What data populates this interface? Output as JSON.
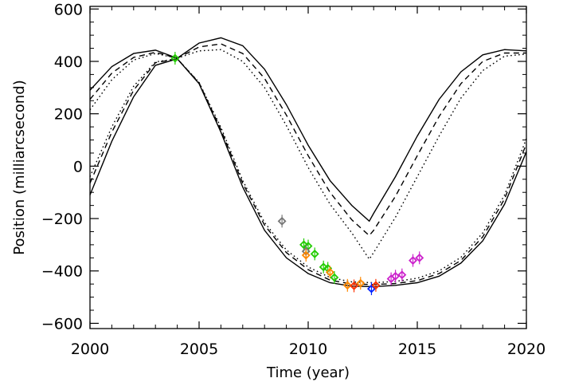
{
  "chart_data": {
    "type": "scatter",
    "title": "",
    "xlabel": "Time (year)",
    "ylabel": "Position (milliarcsecond)",
    "xlim": [
      2000,
      2020
    ],
    "ylim": [
      -620,
      610
    ],
    "x_ticks": [
      2000,
      2005,
      2010,
      2015,
      2020
    ],
    "x_tick_labels": [
      "2000",
      "2005",
      "2010",
      "2015",
      "2020"
    ],
    "y_ticks": [
      -600,
      -400,
      -200,
      0,
      200,
      400,
      600
    ],
    "y_tick_labels": [
      "−600",
      "−400",
      "−200",
      "0",
      "200",
      "400",
      "600"
    ],
    "grid": false,
    "legend": "none",
    "series": [
      {
        "style": "solid",
        "color": "#000000",
        "points": [
          [
            2000,
            -110
          ],
          [
            2001,
            95
          ],
          [
            2002,
            265
          ],
          [
            2003,
            385
          ],
          [
            2004,
            410
          ],
          [
            2005,
            315
          ],
          [
            2006,
            130
          ],
          [
            2007,
            -80
          ],
          [
            2008,
            -245
          ],
          [
            2009,
            -350
          ],
          [
            2010,
            -410
          ],
          [
            2011,
            -445
          ],
          [
            2012,
            -458
          ],
          [
            2013,
            -460
          ],
          [
            2014,
            -455
          ],
          [
            2015,
            -445
          ],
          [
            2016,
            -420
          ],
          [
            2017,
            -370
          ],
          [
            2018,
            -285
          ],
          [
            2019,
            -145
          ],
          [
            2020,
            55
          ]
        ]
      },
      {
        "style": "dashed",
        "color": "#000000",
        "points": [
          [
            2000,
            -65
          ],
          [
            2001,
            130
          ],
          [
            2002,
            290
          ],
          [
            2003,
            395
          ],
          [
            2004,
            410
          ],
          [
            2005,
            318
          ],
          [
            2006,
            140
          ],
          [
            2007,
            -65
          ],
          [
            2008,
            -225
          ],
          [
            2009,
            -330
          ],
          [
            2010,
            -395
          ],
          [
            2011,
            -435
          ],
          [
            2012,
            -450
          ],
          [
            2013,
            -452
          ],
          [
            2014,
            -448
          ],
          [
            2015,
            -437
          ],
          [
            2016,
            -410
          ],
          [
            2017,
            -360
          ],
          [
            2018,
            -270
          ],
          [
            2019,
            -125
          ],
          [
            2020,
            85
          ]
        ]
      },
      {
        "style": "dotted",
        "color": "#000000",
        "points": [
          [
            2000,
            -40
          ],
          [
            2001,
            150
          ],
          [
            2002,
            305
          ],
          [
            2003,
            398
          ],
          [
            2004,
            410
          ],
          [
            2005,
            320
          ],
          [
            2006,
            148
          ],
          [
            2007,
            -55
          ],
          [
            2008,
            -215
          ],
          [
            2009,
            -320
          ],
          [
            2010,
            -385
          ],
          [
            2011,
            -425
          ],
          [
            2012,
            -442
          ],
          [
            2013,
            -445
          ],
          [
            2014,
            -440
          ],
          [
            2015,
            -428
          ],
          [
            2016,
            -400
          ],
          [
            2017,
            -348
          ],
          [
            2018,
            -255
          ],
          [
            2019,
            -110
          ],
          [
            2020,
            105
          ]
        ]
      },
      {
        "style": "solid",
        "color": "#000000",
        "points": [
          [
            2000,
            290
          ],
          [
            2001,
            380
          ],
          [
            2002,
            430
          ],
          [
            2003,
            443
          ],
          [
            2004,
            412
          ],
          [
            2005,
            470
          ],
          [
            2006,
            490
          ],
          [
            2007,
            460
          ],
          [
            2008,
            370
          ],
          [
            2009,
            235
          ],
          [
            2010,
            80
          ],
          [
            2011,
            -55
          ],
          [
            2012,
            -150
          ],
          [
            2012.8,
            -210
          ],
          [
            2013,
            -180
          ],
          [
            2014,
            -40
          ],
          [
            2015,
            115
          ],
          [
            2016,
            255
          ],
          [
            2017,
            360
          ],
          [
            2018,
            425
          ],
          [
            2019,
            445
          ],
          [
            2020,
            440
          ]
        ]
      },
      {
        "style": "dashed",
        "color": "#000000",
        "points": [
          [
            2000,
            255
          ],
          [
            2001,
            355
          ],
          [
            2002,
            415
          ],
          [
            2003,
            435
          ],
          [
            2004,
            412
          ],
          [
            2005,
            455
          ],
          [
            2006,
            467
          ],
          [
            2007,
            430
          ],
          [
            2008,
            335
          ],
          [
            2009,
            195
          ],
          [
            2010,
            40
          ],
          [
            2011,
            -100
          ],
          [
            2012,
            -205
          ],
          [
            2012.8,
            -265
          ],
          [
            2013,
            -245
          ],
          [
            2014,
            -115
          ],
          [
            2015,
            40
          ],
          [
            2016,
            190
          ],
          [
            2017,
            315
          ],
          [
            2018,
            400
          ],
          [
            2019,
            432
          ],
          [
            2020,
            432
          ]
        ]
      },
      {
        "style": "dotted",
        "color": "#000000",
        "points": [
          [
            2000,
            215
          ],
          [
            2001,
            330
          ],
          [
            2002,
            405
          ],
          [
            2003,
            430
          ],
          [
            2004,
            412
          ],
          [
            2005,
            440
          ],
          [
            2006,
            445
          ],
          [
            2007,
            400
          ],
          [
            2008,
            300
          ],
          [
            2009,
            155
          ],
          [
            2010,
            -5
          ],
          [
            2011,
            -145
          ],
          [
            2012,
            -255
          ],
          [
            2012.8,
            -355
          ],
          [
            2013,
            -330
          ],
          [
            2014,
            -195
          ],
          [
            2015,
            -40
          ],
          [
            2016,
            115
          ],
          [
            2017,
            260
          ],
          [
            2018,
            365
          ],
          [
            2019,
            420
          ],
          [
            2020,
            428
          ]
        ]
      }
    ],
    "observations": [
      {
        "x": 2003.9,
        "y": 412,
        "color": "#22cc00",
        "marker": "diamond"
      },
      {
        "x": 2008.8,
        "y": -210,
        "color": "#777777",
        "marker": "diamond"
      },
      {
        "x": 2009.8,
        "y": -300,
        "color": "#22cc00",
        "marker": "diamond"
      },
      {
        "x": 2010.0,
        "y": -305,
        "color": "#22cc00",
        "marker": "diamond"
      },
      {
        "x": 2009.9,
        "y": -325,
        "color": "#777777",
        "marker": "diamond"
      },
      {
        "x": 2009.9,
        "y": -340,
        "color": "#ff8800",
        "marker": "diamond"
      },
      {
        "x": 2010.3,
        "y": -335,
        "color": "#22cc00",
        "marker": "diamond"
      },
      {
        "x": 2010.7,
        "y": -385,
        "color": "#22cc00",
        "marker": "diamond"
      },
      {
        "x": 2010.9,
        "y": -390,
        "color": "#22cc00",
        "marker": "diamond"
      },
      {
        "x": 2011.0,
        "y": -405,
        "color": "#ff8800",
        "marker": "diamond"
      },
      {
        "x": 2011.2,
        "y": -425,
        "color": "#22cc00",
        "marker": "diamond"
      },
      {
        "x": 2011.8,
        "y": -455,
        "color": "#ff8800",
        "marker": "diamond"
      },
      {
        "x": 2012.1,
        "y": -457,
        "color": "#ff3300",
        "marker": "diamond"
      },
      {
        "x": 2012.4,
        "y": -447,
        "color": "#ff8800",
        "marker": "diamond"
      },
      {
        "x": 2012.9,
        "y": -468,
        "color": "#0022ff",
        "marker": "diamond"
      },
      {
        "x": 2013.1,
        "y": -455,
        "color": "#ff3300",
        "marker": "diamond"
      },
      {
        "x": 2013.8,
        "y": -430,
        "color": "#cc22cc",
        "marker": "diamond"
      },
      {
        "x": 2014.0,
        "y": -420,
        "color": "#cc22cc",
        "marker": "diamond"
      },
      {
        "x": 2014.3,
        "y": -415,
        "color": "#cc22cc",
        "marker": "diamond"
      },
      {
        "x": 2014.8,
        "y": -360,
        "color": "#cc22cc",
        "marker": "diamond"
      },
      {
        "x": 2015.1,
        "y": -350,
        "color": "#cc22cc",
        "marker": "diamond"
      }
    ]
  }
}
